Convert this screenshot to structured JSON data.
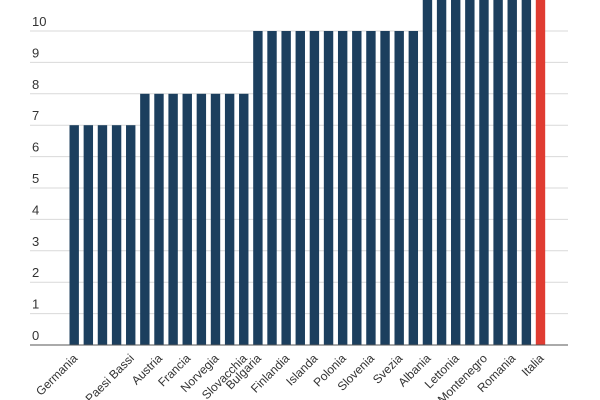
{
  "chart_data": {
    "type": "bar",
    "categories": [
      "Germania",
      "",
      "",
      "",
      "Paesi Bassi",
      "",
      "Austria",
      "",
      "Francia",
      "",
      "Norvegia",
      "",
      "Slovacchia",
      "Bulgaria",
      "",
      "Finlandia",
      "",
      "Islanda",
      "",
      "Polonia",
      "",
      "Slovenia",
      "",
      "Svezia",
      "",
      "Albania",
      "",
      "Lettonia",
      "",
      "Montenegro",
      "",
      "Romania",
      "",
      "Italia"
    ],
    "values": [
      7,
      7,
      7,
      7,
      7,
      8,
      8,
      8,
      8,
      8,
      8,
      8,
      8,
      10,
      10,
      10,
      10,
      10,
      10,
      10,
      10,
      10,
      10,
      10,
      10,
      11,
      11,
      11,
      11,
      11,
      11,
      11,
      11,
      11
    ],
    "highlight_index": 33,
    "ylim": [
      0,
      10.6
    ],
    "yticks": [
      0,
      1,
      2,
      3,
      4,
      5,
      6,
      7,
      8,
      9,
      10
    ],
    "grid": true,
    "colors": {
      "bar": "#1c3f5e",
      "highlight": "#e03c32"
    },
    "title": "",
    "xlabel": "",
    "ylabel": ""
  }
}
